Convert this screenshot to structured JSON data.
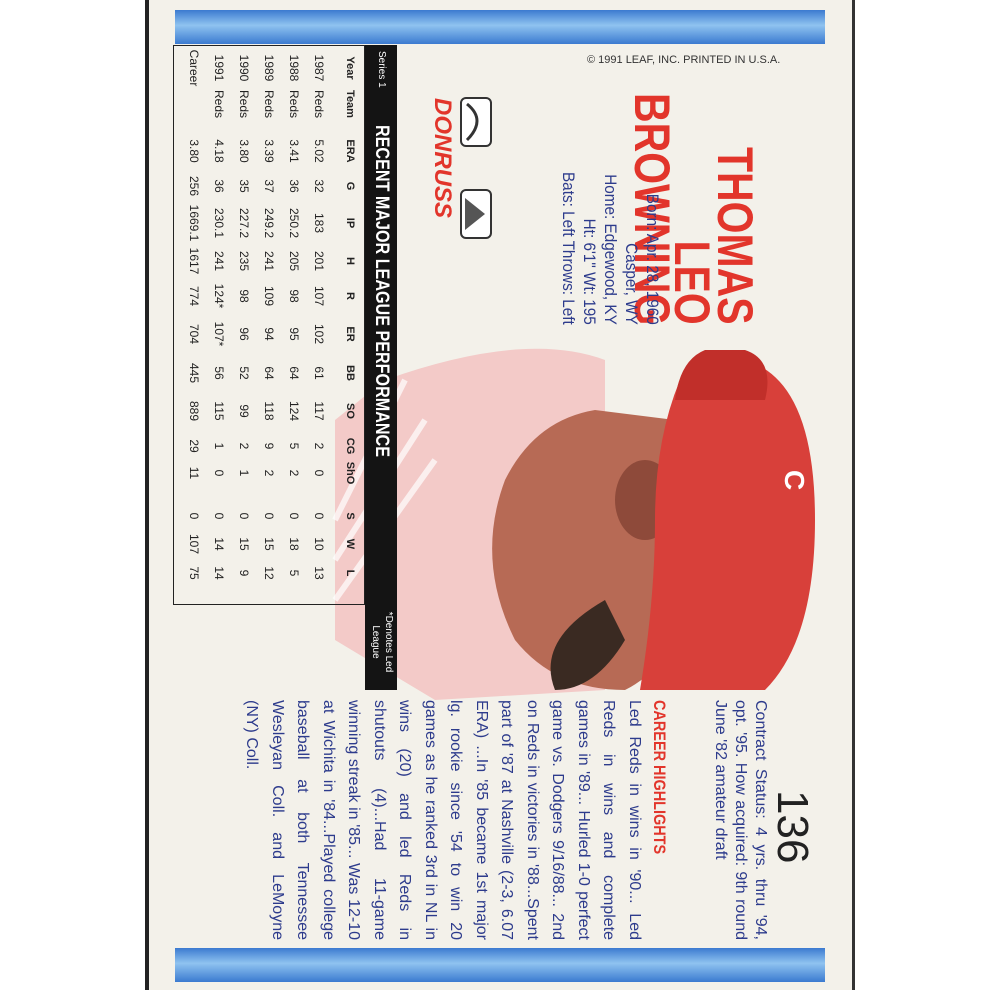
{
  "copyright": "© 1991 LEAF, INC. PRINTED IN U.S.A.",
  "card_number": "136",
  "player": {
    "first": "THOMAS",
    "middle": "LEO",
    "last": "BROWNING"
  },
  "bio": [
    "Born: Apr. 28, 1960",
    "Casper, WY",
    "Home: Edgewood, KY",
    "Ht: 6'1\" Wt: 195",
    "Bats: Left Throws: Left"
  ],
  "brand": "DONRUSS",
  "contract": "Contract Status: 4 yrs. thru '94, opt. '95. How acquired: 9th round June '82 amateur draft",
  "highlights": {
    "title": "CAREER HIGHLIGHTS",
    "text": "Led Reds in wins in '90... Led Reds in wins and complete games in '89... Hurled 1-0 perfect game vs. Dodgers 9/16/88... 2nd on Reds in victories in '88...Spent part of '87 at Nashville (2-3, 6.07 ERA) ...In '85 became 1st major lg. rookie since '54 to win 20 games as he ranked 3rd in NL in wins (20) and led Reds in shutouts (4)...Had 11-game winning streak in '85... Was 12-10 at Wichita in '84...Played college baseball at both Tennessee Wesleyan Coll. and LeMoyne (NY) Coll."
  },
  "stats": {
    "series": "Series 1",
    "title": "RECENT MAJOR LEAGUE PERFORMANCE",
    "note": "*Denotes Led League",
    "columns": [
      "Year",
      "Team",
      "ERA",
      "G",
      "IP",
      "H",
      "R",
      "ER",
      "BB",
      "SO",
      "CG",
      "ShO",
      "S",
      "W",
      "L"
    ],
    "rows": [
      [
        "1987",
        "Reds",
        "5.02",
        "32",
        "183",
        "201",
        "107",
        "102",
        "61",
        "117",
        "2",
        "0",
        "0",
        "10",
        "13"
      ],
      [
        "1988",
        "Reds",
        "3.41",
        "36",
        "250.2",
        "205",
        "98",
        "95",
        "64",
        "124",
        "5",
        "2",
        "0",
        "18",
        "5"
      ],
      [
        "1989",
        "Reds",
        "3.39",
        "37",
        "249.2",
        "241",
        "109",
        "94",
        "64",
        "118",
        "9",
        "2",
        "0",
        "15",
        "12"
      ],
      [
        "1990",
        "Reds",
        "3.80",
        "35",
        "227.2",
        "235",
        "98",
        "96",
        "52",
        "99",
        "2",
        "1",
        "0",
        "15",
        "9"
      ],
      [
        "1991",
        "Reds",
        "4.18",
        "36",
        "230.1",
        "241",
        "124*",
        "107*",
        "56",
        "115",
        "1",
        "0",
        "0",
        "14",
        "14"
      ],
      [
        "Career",
        null,
        "3.80",
        "256",
        "1669.1",
        "1617",
        "774",
        "704",
        "445",
        "889",
        "29",
        "11",
        "0",
        "107",
        "75"
      ]
    ]
  }
}
